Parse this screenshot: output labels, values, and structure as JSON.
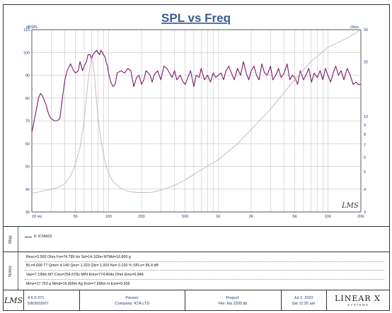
{
  "chart_data": {
    "type": "line",
    "title": "SPL vs Freq",
    "ylabel_left": "dBSPL",
    "ylabel_right": "Ohm",
    "x_scale": "log",
    "xlim": [
      20,
      20000
    ],
    "ylim_left": [
      30,
      110
    ],
    "ylim_right": [
      3,
      30
    ],
    "grid": true,
    "x_tick_labels": [
      {
        "value": 20,
        "label": "20  Hz"
      },
      {
        "value": 50,
        "label": "50"
      },
      {
        "value": 100,
        "label": "100"
      },
      {
        "value": 200,
        "label": "200"
      },
      {
        "value": 500,
        "label": "500"
      },
      {
        "value": 1000,
        "label": "1K"
      },
      {
        "value": 2000,
        "label": "2K"
      },
      {
        "value": 5000,
        "label": "5K"
      },
      {
        "value": 10000,
        "label": "10K"
      },
      {
        "value": 20000,
        "label": "20K"
      }
    ],
    "y_left_ticks": [
      30,
      40,
      50,
      60,
      70,
      80,
      90,
      100,
      110
    ],
    "y_right_ticks": [
      {
        "value": 3,
        "label": "3"
      },
      {
        "value": 4,
        "label": "4"
      },
      {
        "value": 5,
        "label": "5"
      },
      {
        "value": 6,
        "label": "6"
      },
      {
        "value": 7,
        "label": "7"
      },
      {
        "value": 8,
        "label": "8"
      },
      {
        "value": 9,
        "label": "9"
      },
      {
        "value": 10,
        "label": "10"
      },
      {
        "value": 20,
        "label": "20"
      },
      {
        "value": 30,
        "label": "30"
      }
    ],
    "series": [
      {
        "name": "6: KTA602",
        "axis": "left",
        "color": "#7a1a6e",
        "x": [
          20,
          21,
          22,
          23,
          24,
          25,
          27,
          28,
          29,
          30,
          32,
          34,
          36,
          38,
          40,
          42,
          45,
          48,
          50,
          53,
          55,
          58,
          60,
          63,
          65,
          68,
          70,
          72,
          75,
          78,
          80,
          83,
          85,
          88,
          90,
          93,
          95,
          98,
          100,
          105,
          110,
          115,
          120,
          130,
          140,
          150,
          160,
          170,
          180,
          190,
          200,
          210,
          220,
          230,
          240,
          250,
          260,
          280,
          300,
          320,
          340,
          360,
          380,
          400,
          420,
          450,
          480,
          500,
          530,
          560,
          600,
          630,
          670,
          700,
          750,
          800,
          850,
          900,
          950,
          1000,
          1060,
          1120,
          1180,
          1250,
          1320,
          1400,
          1500,
          1600,
          1700,
          1800,
          1900,
          2000,
          2120,
          2240,
          2360,
          2500,
          2650,
          2800,
          3000,
          3150,
          3350,
          3550,
          3750,
          4000,
          4250,
          4500,
          4750,
          5000,
          5300,
          5600,
          6000,
          6300,
          6700,
          7100,
          7500,
          8000,
          8500,
          9000,
          9500,
          10000,
          10600,
          11200,
          11800,
          12500,
          13200,
          14000,
          15000,
          16000,
          17000,
          18000,
          19000,
          20000
        ],
        "y": [
          65,
          70,
          75,
          80,
          82,
          81,
          77,
          74,
          72,
          71,
          70,
          70,
          71,
          80,
          88,
          92,
          95,
          92,
          91,
          92,
          96,
          92,
          94,
          96,
          99,
          99,
          97,
          99,
          100,
          101,
          100,
          99,
          101,
          100,
          99,
          98,
          96,
          94,
          91,
          87,
          85,
          86,
          91,
          92,
          91,
          93,
          92,
          85,
          89,
          90,
          86,
          88,
          92,
          91,
          90,
          87,
          90,
          92,
          88,
          94,
          93,
          91,
          89,
          92,
          88,
          90,
          87,
          86,
          89,
          92,
          85,
          90,
          89,
          93,
          88,
          90,
          87,
          91,
          89,
          90,
          91,
          88,
          92,
          94,
          91,
          88,
          93,
          90,
          96,
          91,
          88,
          92,
          94,
          90,
          88,
          95,
          91,
          90,
          94,
          88,
          90,
          93,
          89,
          91,
          95,
          88,
          90,
          89,
          86,
          92,
          88,
          90,
          93,
          87,
          91,
          89,
          92,
          88,
          93,
          90,
          87,
          91,
          94,
          90,
          92,
          88,
          93,
          90,
          86,
          87,
          86,
          86
        ]
      },
      {
        "name": "impedance",
        "axis": "right",
        "color": "#c9aec4",
        "x": [
          20,
          25,
          30,
          35,
          40,
          45,
          50,
          55,
          60,
          65,
          68,
          70,
          72,
          75,
          78,
          80,
          85,
          90,
          95,
          100,
          110,
          120,
          130,
          150,
          170,
          200,
          250,
          300,
          400,
          500,
          700,
          1000,
          1500,
          2000,
          3000,
          5000,
          7000,
          10000,
          15000,
          20000
        ],
        "y": [
          3.8,
          3.9,
          4.0,
          4.1,
          4.3,
          4.7,
          5.5,
          6.8,
          9.5,
          15.5,
          19,
          21,
          20,
          16,
          12,
          10,
          7.5,
          6.2,
          5.4,
          4.9,
          4.4,
          4.2,
          4.05,
          3.9,
          3.85,
          3.83,
          3.85,
          3.95,
          4.2,
          4.5,
          5.1,
          5.8,
          7.1,
          8.5,
          11,
          16,
          20,
          24,
          27,
          30
        ]
      }
    ]
  },
  "watermark": "LMS",
  "sections": {
    "map": "Map",
    "notes": "Notes"
  },
  "legend": {
    "label": "6: KTA602"
  },
  "notes": [
    "Revc=3.500 Ohm  Fo=74.799 Hz  Sd=14.103m M?Md=16.800 g",
    "BL=4.699 T?  Qms= 4.140  Qes= 1.323  Qts= 1.003  No= 0.220 %  SPLo= 85.4 dB",
    "Vas=7.199m M? Cms=254.679u M/N  Kms=774.404u Ohm  Ems=0.848",
    "Mms=17.763 g  Mmd=16.800m Kg  Kxm=7.595m H  Exm=0.656"
  ],
  "footer": {
    "logo": "LMS",
    "version": "4.6.0.371",
    "version_date": "5/8/30/2007",
    "person_label": "Person:",
    "person_value": "Company: KTA LTD",
    "project_label": "Project:",
    "project_value": "File: kta 2205.lib",
    "date": "Jul  2, 2022",
    "time": "Sat 11:25 am",
    "brand": "LINEAR X",
    "brand_sub": "S Y S T E M S"
  }
}
